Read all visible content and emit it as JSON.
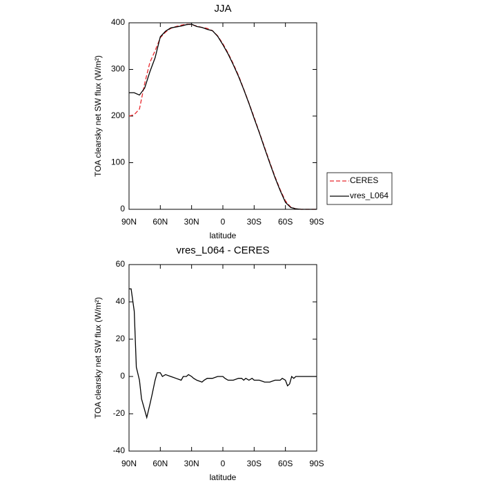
{
  "chart_data": [
    {
      "type": "line",
      "title": "JJA",
      "xlabel": "latitude",
      "ylabel": "TOA clearsky net SW flux (W/m²)",
      "x": [
        90,
        85,
        80,
        75,
        70,
        65,
        60,
        55,
        50,
        45,
        40,
        35,
        30,
        25,
        20,
        15,
        10,
        5,
        0,
        -5,
        -10,
        -15,
        -20,
        -25,
        -30,
        -35,
        -40,
        -45,
        -50,
        -55,
        -60,
        -65,
        -70,
        -75,
        -80,
        -85,
        -90
      ],
      "series": [
        {
          "name": "CERES",
          "color": "#e8262b",
          "dashed": true,
          "values": [
            200,
            203,
            215,
            270,
            315,
            340,
            368,
            380,
            388,
            392,
            395,
            397,
            396,
            393,
            390,
            388,
            383,
            372,
            355,
            335,
            312,
            287,
            258,
            228,
            197,
            165,
            133,
            101,
            70,
            42,
            18,
            5,
            1,
            0,
            0,
            0,
            0
          ]
        },
        {
          "name": "vres_L064",
          "color": "#000000",
          "dashed": false,
          "values": [
            250,
            250,
            245,
            260,
            295,
            325,
            370,
            382,
            389,
            391,
            393,
            396,
            397,
            392,
            390,
            386,
            383,
            371,
            353,
            333,
            310,
            285,
            257,
            227,
            195,
            164,
            131,
            99,
            68,
            40,
            15,
            4,
            1,
            0,
            0,
            0,
            0
          ]
        }
      ],
      "xlim": [
        90,
        -90
      ],
      "xticks": [
        {
          "value": 90,
          "label": "90N"
        },
        {
          "value": 60,
          "label": "60N"
        },
        {
          "value": 30,
          "label": "30N"
        },
        0,
        {
          "value": -30,
          "label": "30S"
        },
        {
          "value": -60,
          "label": "60S"
        },
        {
          "value": -90,
          "label": "90S"
        }
      ],
      "ylim": [
        0,
        400
      ],
      "yticks": [
        0,
        100,
        200,
        300,
        400
      ]
    },
    {
      "type": "line",
      "title": "vres_L064 - CERES",
      "xlabel": "latitude",
      "ylabel": "TOA clearsky net SW flux (W/m²)",
      "x": [
        90,
        88,
        85,
        83,
        80,
        78,
        75,
        73,
        70,
        68,
        65,
        63,
        60,
        58,
        55,
        50,
        45,
        40,
        38,
        35,
        33,
        30,
        28,
        25,
        20,
        18,
        15,
        10,
        5,
        2,
        0,
        -2,
        -5,
        -10,
        -15,
        -18,
        -20,
        -22,
        -25,
        -28,
        -30,
        -35,
        -40,
        -45,
        -50,
        -55,
        -57,
        -60,
        -62,
        -64,
        -66,
        -68,
        -70,
        -75,
        -80,
        -85,
        -90
      ],
      "series": [
        {
          "color": "#000000",
          "values": [
            47,
            47,
            35,
            5,
            -2,
            -12,
            -18,
            -22,
            -15,
            -10,
            -2,
            2,
            2,
            0,
            1,
            0,
            -1,
            -2,
            0,
            0,
            1,
            0,
            -1,
            -2,
            -3,
            -2,
            -1,
            -1,
            0,
            0,
            0,
            -1,
            -2,
            -2,
            -1,
            -1,
            -2,
            -1,
            -2,
            -1,
            -2,
            -2,
            -3,
            -3,
            -2,
            -2,
            -1,
            -2,
            -5,
            -4,
            0,
            -1,
            0,
            0,
            0,
            0,
            0
          ]
        }
      ],
      "xlim": [
        90,
        -90
      ],
      "xticks": [
        {
          "value": 90,
          "label": "90N"
        },
        {
          "value": 60,
          "label": "60N"
        },
        {
          "value": 30,
          "label": "30N"
        },
        0,
        {
          "value": -30,
          "label": "30S"
        },
        {
          "value": -60,
          "label": "60S"
        },
        {
          "value": -90,
          "label": "90S"
        }
      ],
      "ylim": [
        -40,
        60
      ],
      "yticks": [
        -40,
        -20,
        0,
        20,
        40,
        60
      ]
    }
  ]
}
